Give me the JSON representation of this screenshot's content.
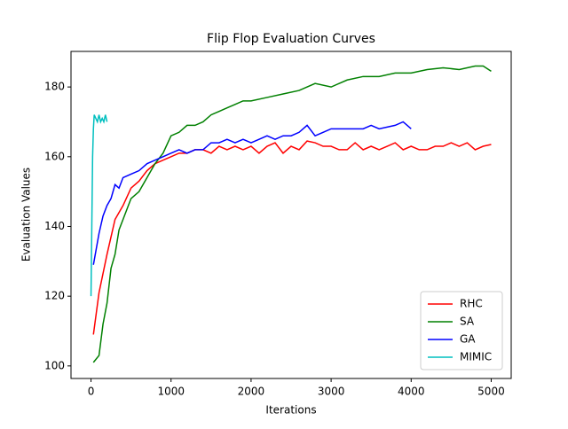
{
  "chart_data": {
    "type": "line",
    "title": "Flip Flop Evaluation Curves",
    "x_label": "Iterations",
    "y_label": "Evaluation Values",
    "xlim": [
      -250,
      5250
    ],
    "ylim": [
      96.4,
      190.2
    ],
    "xticks": [
      0,
      1000,
      2000,
      3000,
      4000,
      5000
    ],
    "yticks": [
      100,
      120,
      140,
      160,
      180
    ],
    "legend": "lower right",
    "series": [
      {
        "name": "RHC",
        "color": "#ff0000",
        "x": [
          30,
          100,
          200,
          300,
          400,
          500,
          600,
          700,
          800,
          900,
          1000,
          1100,
          1200,
          1300,
          1400,
          1500,
          1600,
          1700,
          1800,
          1900,
          2000,
          2100,
          2200,
          2300,
          2400,
          2500,
          2600,
          2700,
          2800,
          2900,
          3000,
          3100,
          3200,
          3300,
          3400,
          3500,
          3600,
          3700,
          3800,
          3900,
          4000,
          4100,
          4200,
          4300,
          4400,
          4500,
          4600,
          4700,
          4800,
          4900,
          5000
        ],
        "values": [
          109,
          121,
          132,
          142,
          146,
          151,
          153,
          156,
          158,
          159,
          160,
          161,
          161,
          162,
          162,
          161,
          163,
          162,
          163,
          162,
          163,
          161,
          163,
          164,
          161,
          163,
          162,
          164.5,
          164,
          163,
          163,
          162,
          162,
          164,
          162,
          163,
          162,
          163,
          164,
          162,
          163,
          162,
          162,
          163,
          163,
          164,
          163,
          164,
          162,
          163,
          163.5
        ]
      },
      {
        "name": "SA",
        "color": "#008000",
        "x": [
          30,
          100,
          150,
          200,
          250,
          300,
          350,
          400,
          500,
          600,
          700,
          800,
          900,
          1000,
          1100,
          1200,
          1300,
          1400,
          1500,
          1600,
          1700,
          1800,
          1900,
          2000,
          2200,
          2400,
          2600,
          2800,
          3000,
          3100,
          3200,
          3400,
          3600,
          3800,
          4000,
          4200,
          4400,
          4600,
          4800,
          4900,
          5000
        ],
        "values": [
          101,
          103,
          112,
          118,
          128,
          132,
          139,
          142,
          148,
          150,
          154,
          158,
          161,
          166,
          167,
          169,
          169,
          170,
          172,
          173,
          174,
          175,
          176,
          176,
          177,
          178,
          179,
          181,
          180,
          181,
          182,
          183,
          183,
          184,
          184,
          185,
          185.5,
          185,
          186,
          186,
          184.5
        ]
      },
      {
        "name": "GA",
        "color": "#0000ff",
        "x": [
          30,
          100,
          150,
          200,
          250,
          300,
          350,
          400,
          500,
          600,
          700,
          800,
          900,
          1000,
          1100,
          1200,
          1300,
          1400,
          1500,
          1600,
          1700,
          1800,
          1900,
          2000,
          2100,
          2200,
          2300,
          2400,
          2500,
          2600,
          2700,
          2800,
          2900,
          3000,
          3200,
          3400,
          3500,
          3600,
          3800,
          3900,
          4000
        ],
        "values": [
          129,
          138,
          143,
          146,
          148,
          152,
          151,
          154,
          155,
          156,
          158,
          159,
          160,
          161,
          162,
          161,
          162,
          162,
          164,
          164,
          165,
          164,
          165,
          164,
          165,
          166,
          165,
          166,
          166,
          167,
          169,
          166,
          167,
          168,
          168,
          168,
          169,
          168,
          169,
          170,
          168
        ]
      },
      {
        "name": "MIMIC",
        "color": "#00bfbf",
        "x": [
          0,
          20,
          30,
          40,
          60,
          80,
          100,
          120,
          140,
          160,
          180,
          200
        ],
        "values": [
          120,
          160,
          168,
          172,
          171,
          170,
          172,
          170,
          171,
          170,
          172,
          170
        ]
      }
    ]
  }
}
